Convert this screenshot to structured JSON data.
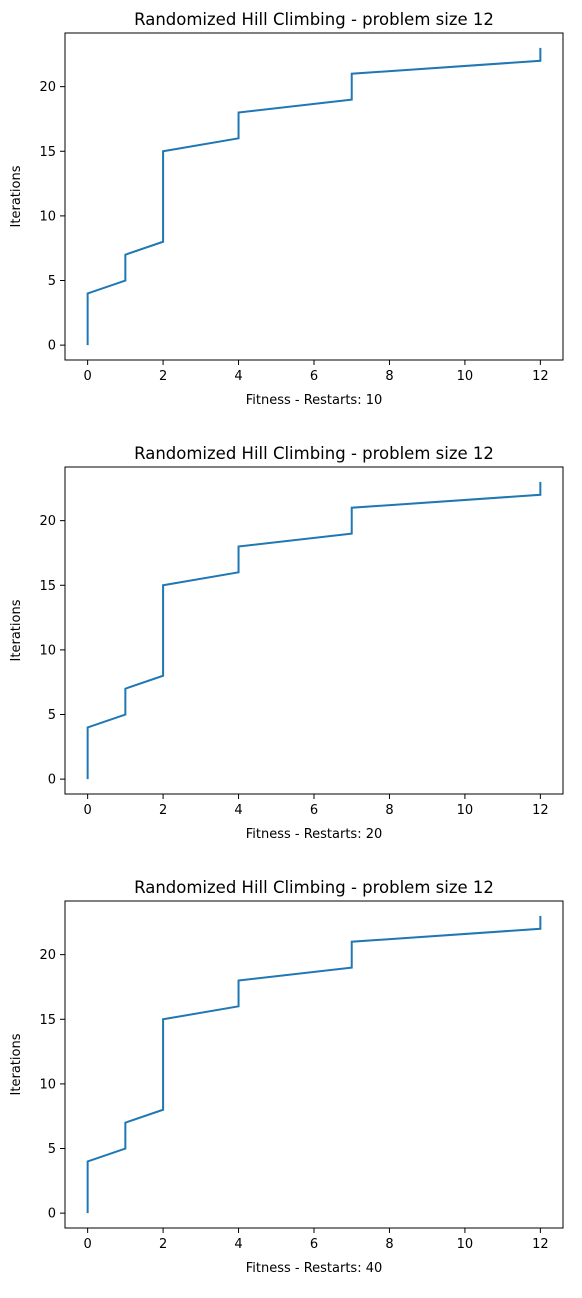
{
  "chart_data": [
    {
      "type": "line",
      "title": "Randomized Hill Climbing - problem size 12",
      "xlabel": "Fitness - Restarts: 10",
      "ylabel": "Iterations",
      "xlim": [
        -0.6,
        12.6
      ],
      "ylim": [
        -1.15,
        24.15
      ],
      "xticks": [
        0,
        2,
        4,
        6,
        8,
        10,
        12
      ],
      "yticks": [
        0,
        5,
        10,
        15,
        20
      ],
      "grid": false,
      "series": [
        {
          "color": "#1f77b4",
          "x": [
            0,
            0,
            1,
            1,
            2,
            2,
            4,
            4,
            7,
            7,
            12,
            12
          ],
          "y": [
            0,
            4,
            5,
            7,
            8,
            15,
            16,
            18,
            19,
            21,
            22,
            23
          ]
        }
      ]
    },
    {
      "type": "line",
      "title": "Randomized Hill Climbing - problem size 12",
      "xlabel": "Fitness - Restarts: 20",
      "ylabel": "Iterations",
      "xlim": [
        -0.6,
        12.6
      ],
      "ylim": [
        -1.15,
        24.15
      ],
      "xticks": [
        0,
        2,
        4,
        6,
        8,
        10,
        12
      ],
      "yticks": [
        0,
        5,
        10,
        15,
        20
      ],
      "grid": false,
      "series": [
        {
          "color": "#1f77b4",
          "x": [
            0,
            0,
            1,
            1,
            2,
            2,
            4,
            4,
            7,
            7,
            12,
            12
          ],
          "y": [
            0,
            4,
            5,
            7,
            8,
            15,
            16,
            18,
            19,
            21,
            22,
            23
          ]
        }
      ]
    },
    {
      "type": "line",
      "title": "Randomized Hill Climbing - problem size 12",
      "xlabel": "Fitness - Restarts: 40",
      "ylabel": "Iterations",
      "xlim": [
        -0.6,
        12.6
      ],
      "ylim": [
        -1.15,
        24.15
      ],
      "xticks": [
        0,
        2,
        4,
        6,
        8,
        10,
        12
      ],
      "yticks": [
        0,
        5,
        10,
        15,
        20
      ],
      "grid": false,
      "series": [
        {
          "color": "#1f77b4",
          "x": [
            0,
            0,
            1,
            1,
            2,
            2,
            4,
            4,
            7,
            7,
            12,
            12
          ],
          "y": [
            0,
            4,
            5,
            7,
            8,
            15,
            16,
            18,
            19,
            21,
            22,
            23
          ]
        }
      ]
    }
  ]
}
